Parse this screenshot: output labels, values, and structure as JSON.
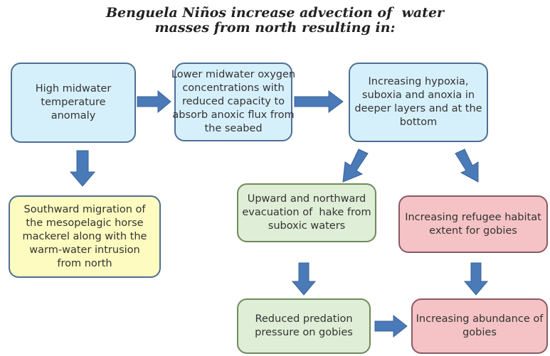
{
  "title": {
    "lines": [
      "Benguela Niños increase advection of  water",
      "masses from north resulting in:"
    ]
  },
  "nodes": [
    {
      "lines": [
        "High midwater",
        "temperature",
        "anomaly"
      ]
    },
    {
      "lines": [
        "Lower midwater oxygen",
        "concentrations with",
        "reduced capacity to",
        "absorb anoxic flux from",
        "the seabed"
      ]
    },
    {
      "lines": [
        "Increasing hypoxia,",
        "suboxia and anoxia in",
        "deeper layers and at the",
        "bottom"
      ]
    },
    {
      "lines": [
        "Southward migration of",
        "the mesopelagic horse",
        "mackerel along with the",
        "warm-water intrusion",
        "from north"
      ]
    },
    {
      "lines": [
        "Upward and northward",
        "evacuation of  hake from",
        "suboxic waters"
      ]
    },
    {
      "lines": [
        "Increasing refugee habitat",
        "extent for gobies"
      ]
    },
    {
      "lines": [
        "Reduced predation",
        "pressure on gobies"
      ]
    },
    {
      "lines": [
        "Increasing abundance of",
        "gobies"
      ]
    }
  ]
}
